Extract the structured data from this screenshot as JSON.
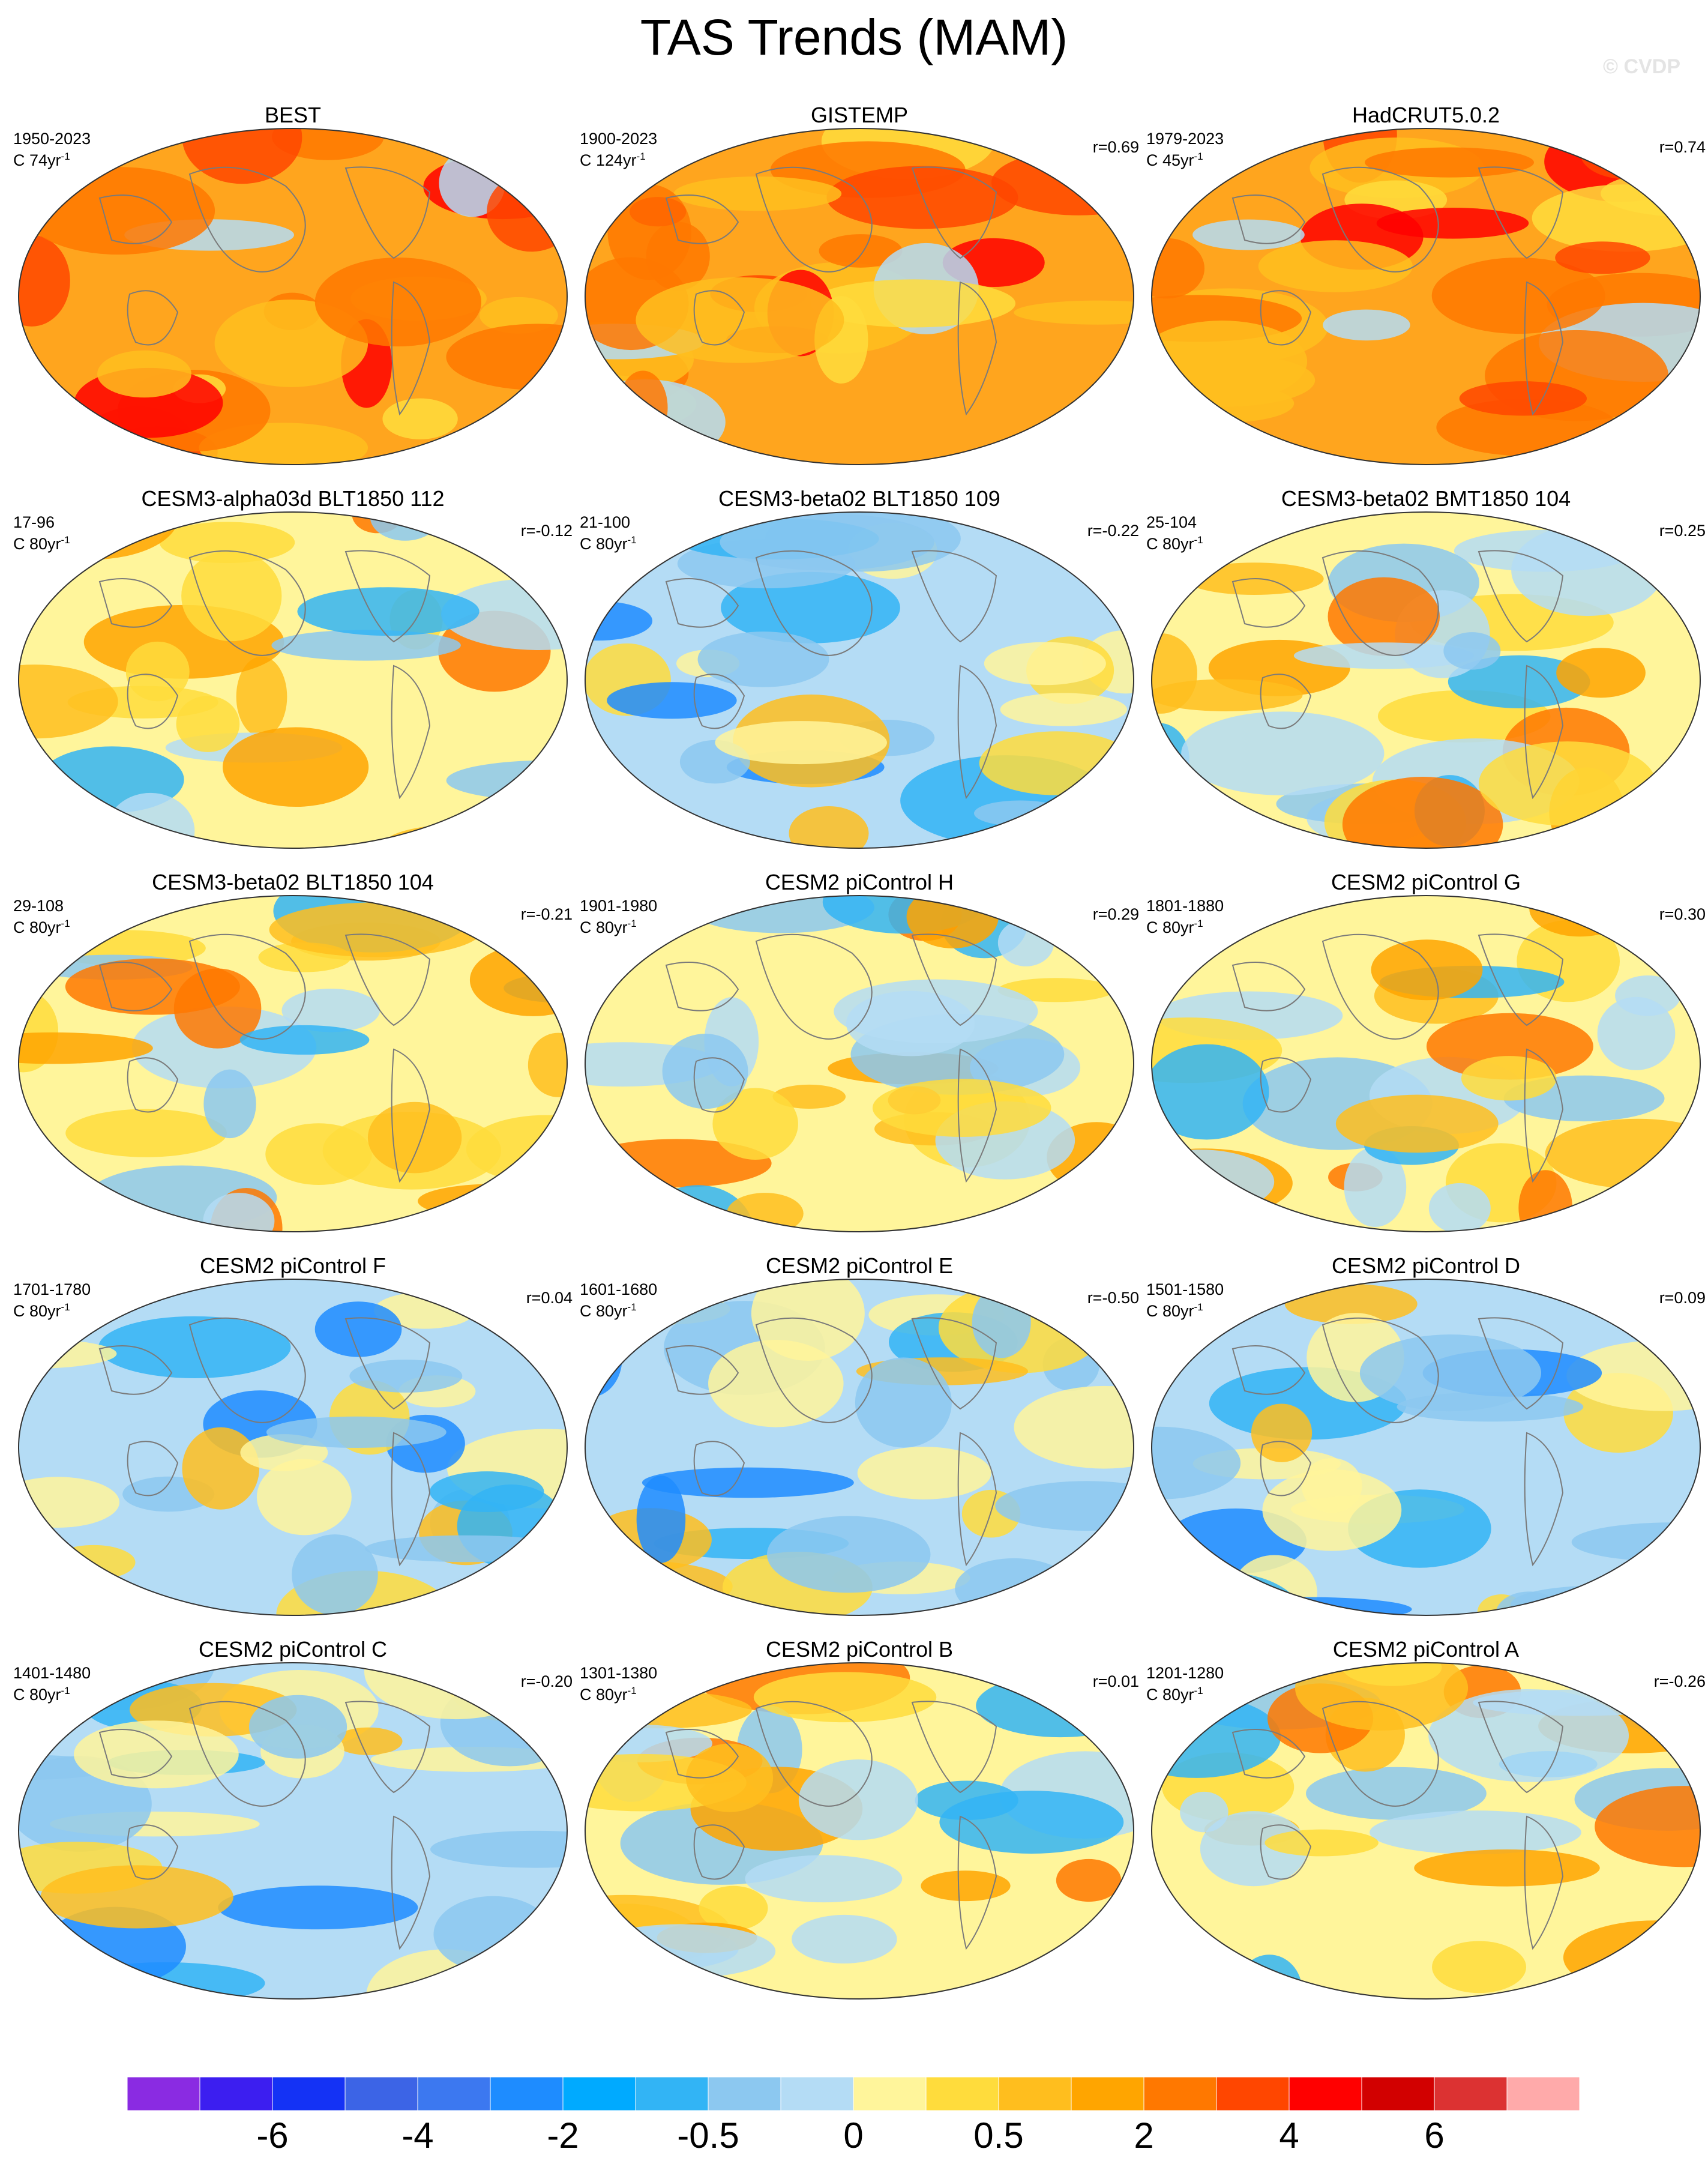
{
  "title": "TAS Trends (MAM)",
  "watermark": "© CVDP",
  "panels": [
    {
      "title": "BEST",
      "period": "1950-2023",
      "units_base": "C 74yr",
      "units_exp": "-1",
      "r": "",
      "tone": "warm-strong"
    },
    {
      "title": "GISTEMP",
      "period": "1900-2023",
      "units_base": "C 124yr",
      "units_exp": "-1",
      "r": "r=0.69",
      "tone": "warm-strong"
    },
    {
      "title": "HadCRUT5.0.2",
      "period": "1979-2023",
      "units_base": "C 45yr",
      "units_exp": "-1",
      "r": "r=0.74",
      "tone": "warm-strong"
    },
    {
      "title": "CESM3-alpha03d BLT1850 112",
      "period": "17-96",
      "units_base": "C 80yr",
      "units_exp": "-1",
      "r": "r=-0.12",
      "tone": "mixed-warm"
    },
    {
      "title": "CESM3-beta02 BLT1850 109",
      "period": "21-100",
      "units_base": "C 80yr",
      "units_exp": "-1",
      "r": "r=-0.22",
      "tone": "mixed-cool"
    },
    {
      "title": "CESM3-beta02 BMT1850 104",
      "period": "25-104",
      "units_base": "C 80yr",
      "units_exp": "-1",
      "r": "r=0.25",
      "tone": "mixed"
    },
    {
      "title": "CESM3-beta02 BLT1850 104",
      "period": "29-108",
      "units_base": "C 80yr",
      "units_exp": "-1",
      "r": "r=-0.21",
      "tone": "mixed-warm"
    },
    {
      "title": "CESM2 piControl H",
      "period": "1901-1980",
      "units_base": "C 80yr",
      "units_exp": "-1",
      "r": "r=0.29",
      "tone": "mixed"
    },
    {
      "title": "CESM2 piControl G",
      "period": "1801-1880",
      "units_base": "C 80yr",
      "units_exp": "-1",
      "r": "r=0.30",
      "tone": "mixed"
    },
    {
      "title": "CESM2 piControl F",
      "period": "1701-1780",
      "units_base": "C 80yr",
      "units_exp": "-1",
      "r": "r=0.04",
      "tone": "mixed-cool"
    },
    {
      "title": "CESM2 piControl E",
      "period": "1601-1680",
      "units_base": "C 80yr",
      "units_exp": "-1",
      "r": "r=-0.50",
      "tone": "mixed-cool"
    },
    {
      "title": "CESM2 piControl D",
      "period": "1501-1580",
      "units_base": "C 80yr",
      "units_exp": "-1",
      "r": "r=0.09",
      "tone": "mixed-cool"
    },
    {
      "title": "CESM2 piControl C",
      "period": "1401-1480",
      "units_base": "C 80yr",
      "units_exp": "-1",
      "r": "r=-0.20",
      "tone": "mixed-cool"
    },
    {
      "title": "CESM2 piControl B",
      "period": "1301-1380",
      "units_base": "C 80yr",
      "units_exp": "-1",
      "r": "r=0.01",
      "tone": "mixed"
    },
    {
      "title": "CESM2 piControl A",
      "period": "1201-1280",
      "units_base": "C 80yr",
      "units_exp": "-1",
      "r": "r=-0.26",
      "tone": "mixed"
    }
  ],
  "colorbar": {
    "colors": [
      "#8a2be2",
      "#3c1ef0",
      "#1432f5",
      "#3c64e6",
      "#3c78f0",
      "#1e8cff",
      "#00aaff",
      "#32b4f5",
      "#8cc8f0",
      "#b4dcf5",
      "#fff59b",
      "#ffdc3c",
      "#ffbe1e",
      "#ffa500",
      "#ff7800",
      "#ff4600",
      "#ff0000",
      "#d20000",
      "#dc3232",
      "#ffaaaa"
    ],
    "labels": [
      "-6",
      "-4",
      "-2",
      "-0.5",
      "0",
      "0.5",
      "2",
      "4",
      "6"
    ],
    "label_boundaries": [
      2,
      4,
      6,
      8,
      10,
      12,
      14,
      16,
      18
    ]
  }
}
